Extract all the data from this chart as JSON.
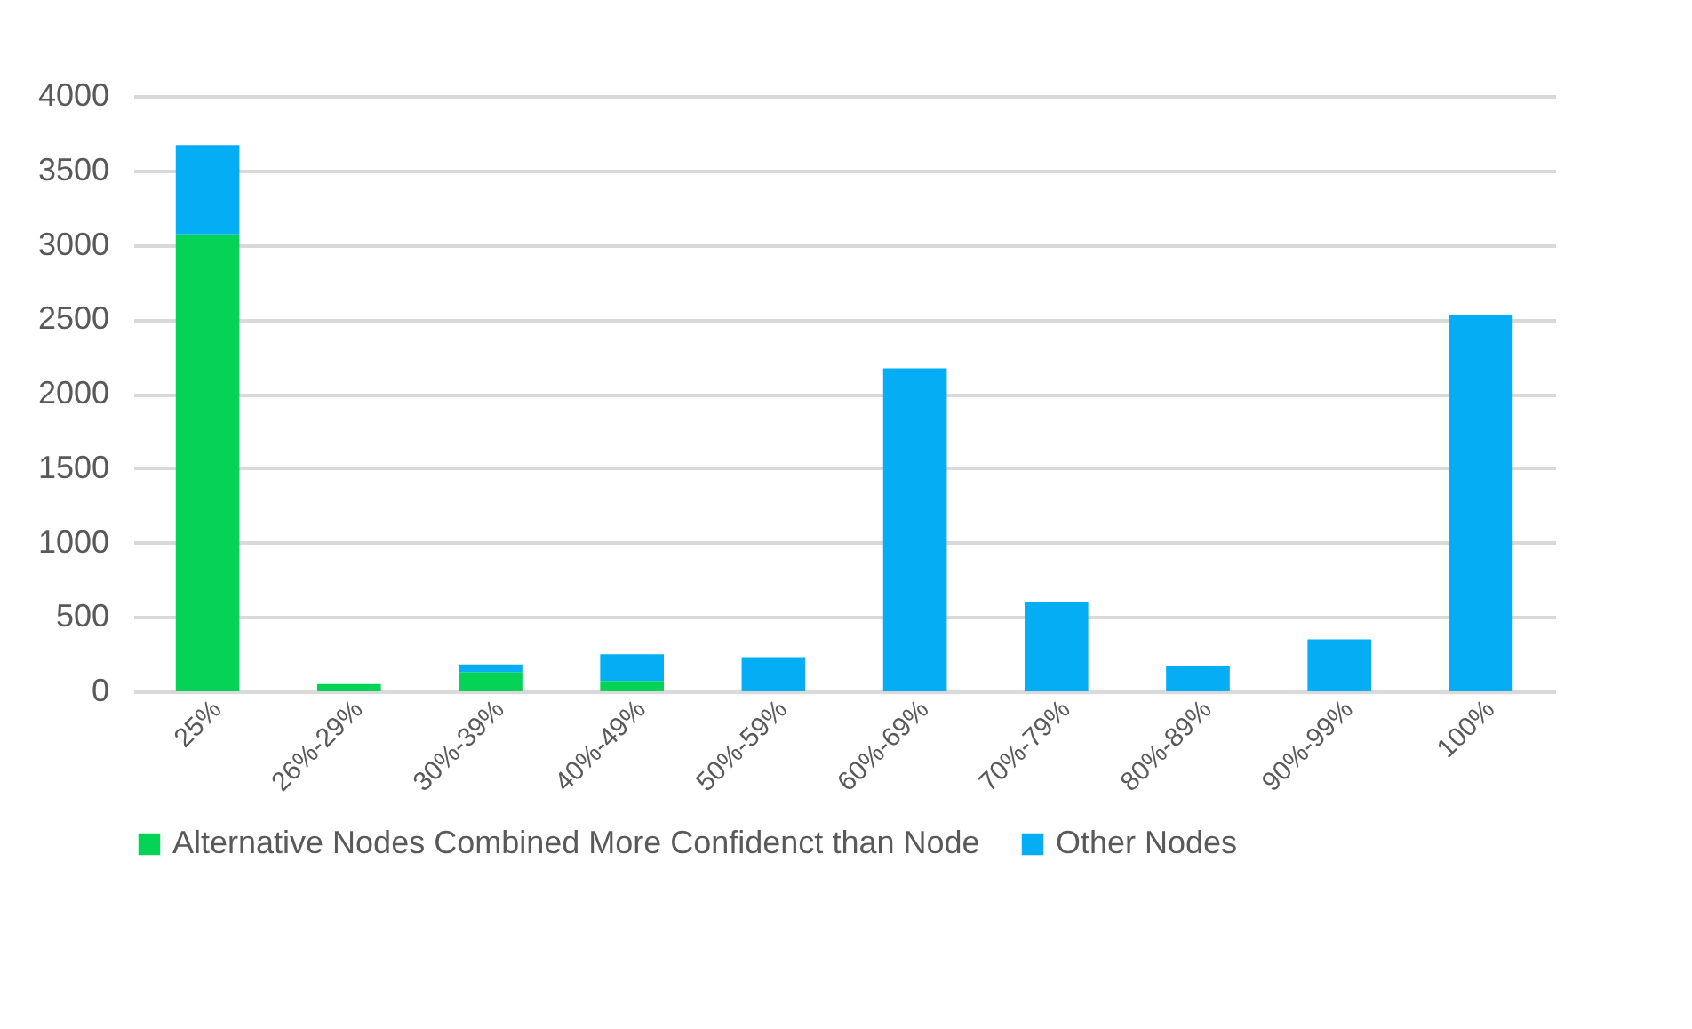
{
  "chart_data": {
    "type": "bar",
    "stacked": true,
    "categories": [
      "25%",
      "26%-29%",
      "30%-39%",
      "40%-49%",
      "50%-59%",
      "60%-69%",
      "70%-79%",
      "80%-89%",
      "90%-99%",
      "100%"
    ],
    "series": [
      {
        "name": "Alternative Nodes Combined More Confidenct than Node",
        "color": "#05d355",
        "values": [
          3070,
          50,
          130,
          70,
          0,
          0,
          0,
          0,
          0,
          0
        ]
      },
      {
        "name": "Other Nodes",
        "color": "#05adf5",
        "values": [
          600,
          0,
          50,
          180,
          230,
          2170,
          600,
          170,
          350,
          2530
        ]
      }
    ],
    "ylim": [
      0,
      4000
    ],
    "yticks": [
      0,
      500,
      1000,
      1500,
      2000,
      2500,
      3000,
      3500,
      4000
    ],
    "grid": "y",
    "legend": "bottom"
  }
}
